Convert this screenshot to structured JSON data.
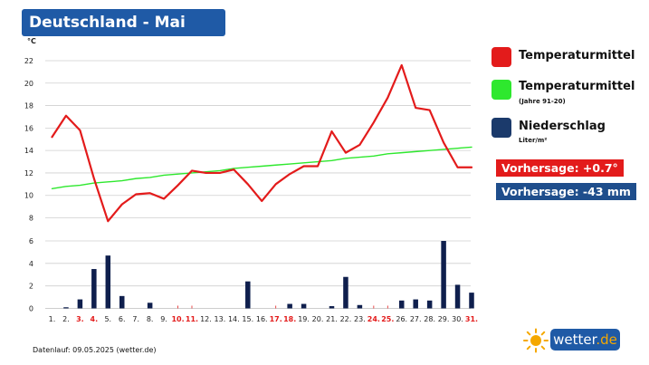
{
  "header": {
    "title": "Deutschland - Mai"
  },
  "legend": {
    "items": [
      {
        "label": "Temperaturmittel",
        "sublabel": "",
        "color": "#e31b1b"
      },
      {
        "label": "Temperaturmittel",
        "sublabel": "(Jahre 91-20)",
        "color": "#2ee82e"
      },
      {
        "label": "Niederschlag",
        "sublabel": "Liter/m²",
        "color": "#1b3a6b"
      }
    ]
  },
  "forecast": {
    "temp": {
      "label": "Vorhersage: +0.7°",
      "color": "#e31b1b"
    },
    "precip": {
      "label": "Vorhersage: -43 mm",
      "color": "#1f4e8c"
    }
  },
  "footer": {
    "text": "Datenlauf: 09.05.2025 (wetter.de)"
  },
  "logo": {
    "text_main": "wetter",
    "text_dot": ".de",
    "icon": "sun-icon"
  },
  "chart_data": {
    "type": "line",
    "unit_label": "°C",
    "categories": [
      "1.",
      "2.",
      "3.",
      "4.",
      "5.",
      "6.",
      "7.",
      "8.",
      "9.",
      "10.",
      "11.",
      "12.",
      "13.",
      "14.",
      "15.",
      "16.",
      "17.",
      "18.",
      "19.",
      "20.",
      "21.",
      "22.",
      "23.",
      "24.",
      "25.",
      "26.",
      "27.",
      "28.",
      "29.",
      "30.",
      "31."
    ],
    "highlighted_days": [
      "3.",
      "4.",
      "10.",
      "11.",
      "17.",
      "18.",
      "24.",
      "25.",
      "31."
    ],
    "ylim": [
      0,
      22
    ],
    "temp_ticks": [
      8,
      10,
      12,
      14,
      16,
      18,
      20,
      22
    ],
    "precip_ticks": [
      0,
      2,
      4,
      6
    ],
    "grid": true,
    "series": [
      {
        "name": "Temperaturmittel",
        "kind": "line",
        "color": "#e31b1b",
        "values": [
          15.2,
          17.1,
          15.8,
          11.5,
          7.7,
          9.2,
          10.1,
          10.2,
          9.7,
          10.9,
          12.2,
          12.0,
          12.0,
          12.3,
          11.0,
          9.5,
          11.0,
          11.9,
          12.6,
          12.6,
          15.7,
          13.8,
          14.5,
          16.5,
          18.7,
          21.6,
          17.8,
          17.6,
          14.7,
          12.5,
          12.5
        ]
      },
      {
        "name": "Temperaturmittel (Jahre 91-20)",
        "kind": "line",
        "color": "#2ee82e",
        "values": [
          10.6,
          10.8,
          10.9,
          11.1,
          11.2,
          11.3,
          11.5,
          11.6,
          11.8,
          11.9,
          12.0,
          12.1,
          12.2,
          12.4,
          12.5,
          12.6,
          12.7,
          12.8,
          12.9,
          13.0,
          13.1,
          13.3,
          13.4,
          13.5,
          13.7,
          13.8,
          13.9,
          14.0,
          14.1,
          14.2,
          14.3
        ]
      },
      {
        "name": "Niederschlag",
        "kind": "bar",
        "color": "#0f1f4d",
        "values": [
          0,
          0.1,
          0.8,
          3.5,
          4.7,
          1.1,
          0,
          0.5,
          0,
          0,
          0,
          0,
          0,
          0,
          2.4,
          0,
          0,
          0.4,
          0.4,
          0,
          0.2,
          2.8,
          0.3,
          0,
          0,
          0.7,
          0.8,
          0.7,
          6.0,
          2.1,
          1.4
        ]
      }
    ]
  }
}
